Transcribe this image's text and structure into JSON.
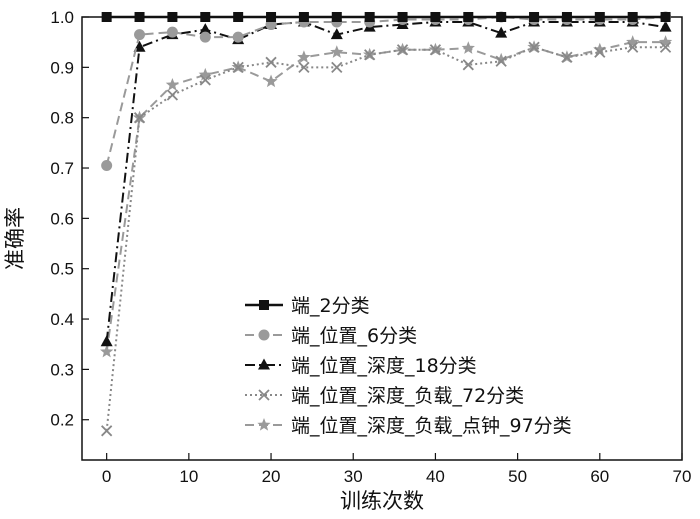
{
  "chart_data": {
    "type": "line",
    "xlabel": "训练次数",
    "ylabel": "准确率",
    "xlim": [
      -3,
      70
    ],
    "ylim": [
      0.12,
      1.0
    ],
    "xticks": [
      0,
      10,
      20,
      30,
      40,
      50,
      60,
      70
    ],
    "yticks": [
      0.2,
      0.3,
      0.4,
      0.5,
      0.6,
      0.7,
      0.8,
      0.9,
      1.0
    ],
    "xtick_labels": [
      "0",
      "10",
      "20",
      "30",
      "40",
      "50",
      "60",
      "70"
    ],
    "ytick_labels": [
      "0.2",
      "0.3",
      "0.4",
      "0.5",
      "0.6",
      "0.7",
      "0.8",
      "0.9",
      "1.0"
    ],
    "grid": false,
    "legend_position": "bottom-right",
    "x": [
      0,
      4,
      8,
      12,
      16,
      20,
      24,
      28,
      32,
      36,
      40,
      44,
      48,
      52,
      56,
      60,
      64,
      68
    ],
    "series": [
      {
        "name": "端_2分类",
        "marker": "square",
        "line": "solid",
        "color": "#111111",
        "values": [
          1.0,
          1.0,
          1.0,
          1.0,
          1.0,
          1.0,
          1.0,
          1.0,
          1.0,
          1.0,
          1.0,
          1.0,
          1.0,
          1.0,
          1.0,
          1.0,
          1.0,
          1.0
        ]
      },
      {
        "name": "端_位置_6分类",
        "marker": "circle",
        "line": "dashed",
        "color": "#9a9a9a",
        "values": [
          0.705,
          0.965,
          0.97,
          0.96,
          0.96,
          0.985,
          0.99,
          0.99,
          0.99,
          0.995,
          0.995,
          0.995,
          1.0,
          0.995,
          0.995,
          0.995,
          0.995,
          1.0
        ]
      },
      {
        "name": "端_位置_深度_18分类",
        "marker": "triangle",
        "line": "dashdot",
        "color": "#111111",
        "values": [
          0.355,
          0.94,
          0.965,
          0.975,
          0.955,
          0.985,
          0.99,
          0.965,
          0.98,
          0.985,
          0.99,
          0.99,
          0.968,
          0.99,
          0.99,
          0.99,
          0.99,
          0.98
        ]
      },
      {
        "name": "端_位置_深度_负载_72分类",
        "marker": "x",
        "line": "dotted",
        "color": "#888888",
        "values": [
          0.178,
          0.8,
          0.845,
          0.875,
          0.9,
          0.91,
          0.9,
          0.9,
          0.925,
          0.935,
          0.935,
          0.905,
          0.912,
          0.94,
          0.92,
          0.93,
          0.94,
          0.94
        ]
      },
      {
        "name": "端_位置_深度_负载_点钟_97分类",
        "marker": "star",
        "line": "dashed",
        "color": "#9a9a9a",
        "values": [
          0.335,
          0.8,
          0.865,
          0.885,
          0.9,
          0.872,
          0.92,
          0.93,
          0.925,
          0.935,
          0.935,
          0.938,
          0.915,
          0.94,
          0.92,
          0.935,
          0.95,
          0.95
        ]
      }
    ]
  }
}
